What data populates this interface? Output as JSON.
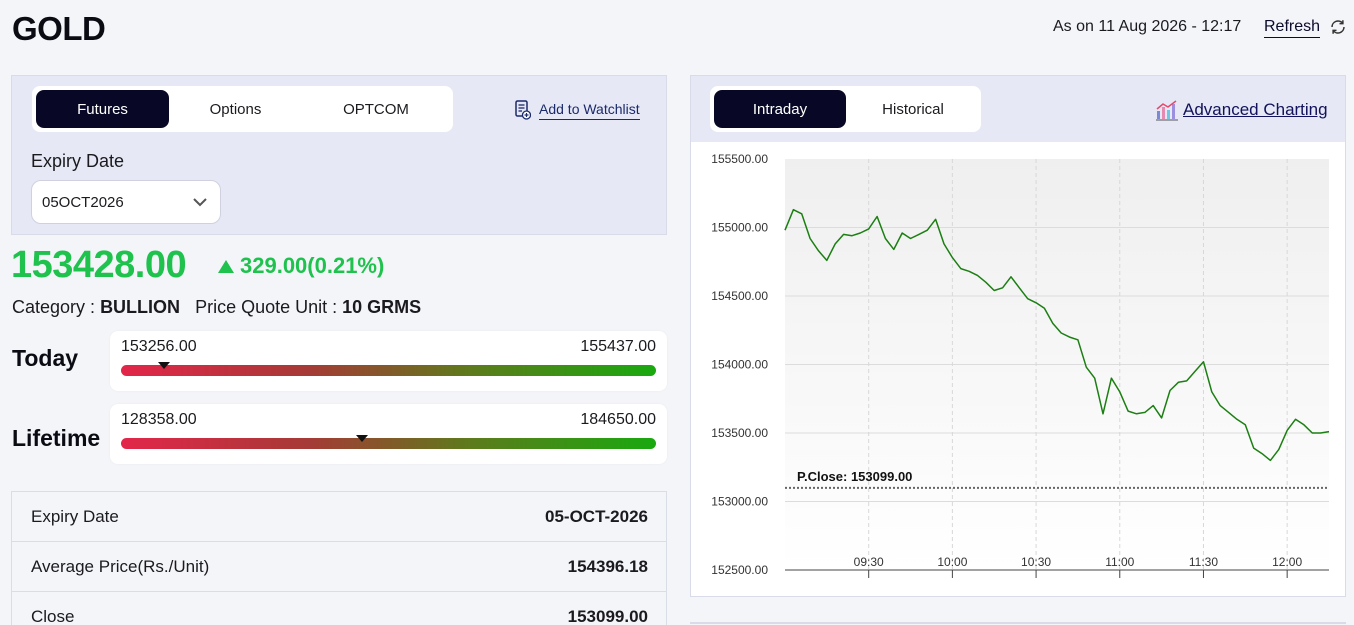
{
  "header": {
    "title": "GOLD",
    "as_on": "As on 11 Aug 2026 - 12:17",
    "refresh_label": "Refresh"
  },
  "left": {
    "tabs": [
      {
        "label": "Futures",
        "active": true
      },
      {
        "label": "Options",
        "active": false
      },
      {
        "label": "OPTCOM",
        "active": false
      }
    ],
    "watchlist_label": "Add to Watchlist",
    "expiry_label": "Expiry Date",
    "expiry_selected": "05OCT2026",
    "price": "153428.00",
    "change": "329.00(0.21%)",
    "category_label": "Category :",
    "category_value": "BULLION",
    "quote_unit_label": "Price Quote Unit :",
    "quote_unit_value": "10 GRMS",
    "today": {
      "label": "Today",
      "low": "153256.00",
      "high": "155437.00",
      "marker_fraction": 0.08
    },
    "lifetime": {
      "label": "Lifetime",
      "low": "128358.00",
      "high": "184650.00",
      "marker_fraction": 0.45
    },
    "table": [
      {
        "key": "Expiry Date",
        "value": "05-OCT-2026"
      },
      {
        "key": "Average Price(Rs./Unit)",
        "value": "154396.18"
      },
      {
        "key": "Close",
        "value": "153099.00"
      }
    ]
  },
  "right": {
    "tabs": [
      {
        "label": "Intraday",
        "active": true
      },
      {
        "label": "Historical",
        "active": false
      }
    ],
    "advanced_label": "Advanced Charting"
  },
  "colors": {
    "accent_dark": "#080826",
    "positive": "#1ec24d",
    "line": "#1b7f12"
  },
  "chart_data": {
    "type": "line",
    "y_ticks": [
      "155500.00",
      "155000.00",
      "154500.00",
      "154000.00",
      "153500.00",
      "153000.00",
      "152500.00"
    ],
    "ylim": [
      152500,
      155500
    ],
    "x_ticks": [
      "09:30",
      "10:00",
      "10:30",
      "11:00",
      "11:30",
      "12:00"
    ],
    "xlim": [
      "09:00",
      "12:15"
    ],
    "prev_close_label": "P.Close: 153099.00",
    "prev_close": 153099,
    "series": [
      {
        "x": [
          "09:00",
          "09:03",
          "09:06",
          "09:09",
          "09:12",
          "09:15",
          "09:18",
          "09:21",
          "09:24",
          "09:27",
          "09:30",
          "09:33",
          "09:36",
          "09:39",
          "09:42",
          "09:45",
          "09:48",
          "09:51",
          "09:54",
          "09:57",
          "10:00",
          "10:03",
          "10:06",
          "10:09",
          "10:12",
          "10:15",
          "10:18",
          "10:21",
          "10:24",
          "10:27",
          "10:30",
          "10:33",
          "10:36",
          "10:39",
          "10:42",
          "10:45",
          "10:48",
          "10:51",
          "10:54",
          "10:57",
          "11:00",
          "11:03",
          "11:06",
          "11:09",
          "11:12",
          "11:15",
          "11:18",
          "11:21",
          "11:24",
          "11:27",
          "11:30",
          "11:33",
          "11:36",
          "11:39",
          "11:42",
          "11:45",
          "11:48",
          "11:51",
          "11:54",
          "11:57",
          "12:00",
          "12:03",
          "12:06",
          "12:09",
          "12:12",
          "12:15"
        ],
        "y": [
          154980,
          155130,
          155100,
          154920,
          154830,
          154760,
          154880,
          154950,
          154940,
          154960,
          154990,
          155080,
          154920,
          154840,
          154960,
          154920,
          154950,
          154980,
          155060,
          154880,
          154780,
          154700,
          154680,
          154650,
          154600,
          154540,
          154560,
          154640,
          154560,
          154480,
          154450,
          154410,
          154300,
          154230,
          154200,
          154180,
          153980,
          153900,
          153640,
          153900,
          153800,
          153660,
          153640,
          153650,
          153700,
          153610,
          153810,
          153870,
          153880,
          153950,
          154020,
          153800,
          153700,
          153650,
          153600,
          153560,
          153390,
          153350,
          153300,
          153380,
          153520,
          153600,
          153560,
          153500,
          153500,
          153510
        ]
      }
    ]
  }
}
